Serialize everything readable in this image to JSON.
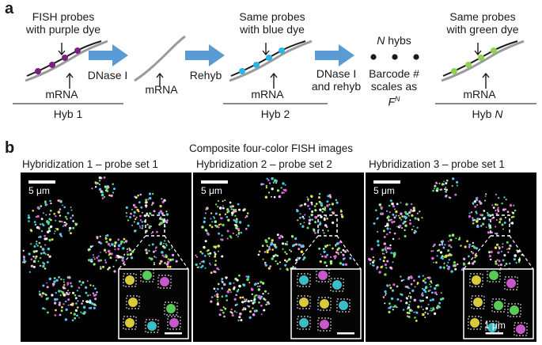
{
  "panel_a": {
    "letter": "a",
    "stage1": {
      "text_line1": "FISH probes",
      "text_line2": "with purple dye",
      "strand_label": "mRNA",
      "hyb_label": "Hyb 1"
    },
    "arrow1_label": "DNase I",
    "stage_bare": {
      "strand_label": "mRNA"
    },
    "arrow2_label": "Rehyb",
    "stage2": {
      "text_line1": "Same probes",
      "text_line2": "with blue dye",
      "strand_label": "mRNA",
      "hyb_label": "Hyb 2"
    },
    "arrow3_label_line1": "DNase I",
    "arrow3_label_line2": "and rehyb",
    "barcode": {
      "n": "N",
      "hybs": " hybs",
      "line2": "Barcode #",
      "line3": "scales as",
      "formula_base": "F",
      "formula_exp": "N"
    },
    "stageN": {
      "text_line1": "Same probes",
      "text_line2": "with green dye",
      "strand_label": "mRNA",
      "hyb_label_prefix": "Hyb ",
      "hyb_label_n": "N"
    },
    "colors": {
      "purple": "#7b1f80",
      "blue": "#29b6e6",
      "green": "#8fd14f",
      "arrow": "#5b9bd5",
      "strand": "#9a9a9a"
    }
  },
  "panel_b": {
    "letter": "b",
    "title": "Composite four-color FISH images",
    "images": [
      {
        "caption": "Hybridization 1 – probe set 1",
        "scale_label": "5 μm"
      },
      {
        "caption": "Hybridization 2 – probe set 2",
        "scale_label": "5 μm"
      },
      {
        "caption": "Hybridization 3 – probe set 1",
        "scale_label": "5 μm",
        "inset_scale_label": "1 μm"
      }
    ]
  }
}
